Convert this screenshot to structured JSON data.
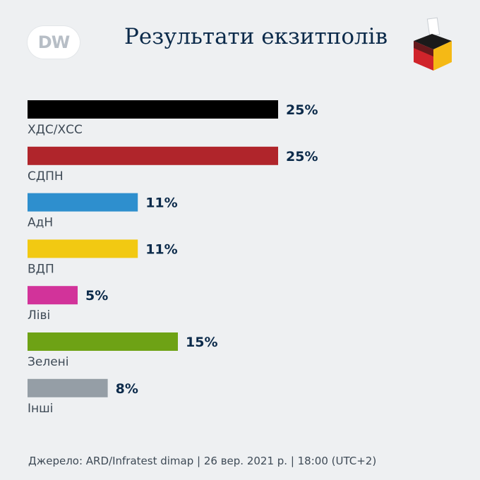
{
  "header": {
    "logo_text": "DW",
    "title": "Результати екзитполів"
  },
  "chart_data": {
    "type": "bar",
    "orientation": "horizontal",
    "title": "Результати екзитполів",
    "categories": [
      "ХДС/ХСС",
      "СДПН",
      "АдН",
      "ВДП",
      "Ліві",
      "Зелені",
      "Інші"
    ],
    "values": [
      25,
      25,
      11,
      11,
      5,
      15,
      8
    ],
    "value_labels": [
      "25%",
      "25%",
      "11%",
      "11%",
      "5%",
      "15%",
      "8%"
    ],
    "colors": [
      "#000000",
      "#b0252b",
      "#2e8fce",
      "#f2c912",
      "#d2339a",
      "#6ea215",
      "#959ea6"
    ],
    "unit": "%",
    "grid": false,
    "legend": "none"
  },
  "footer": {
    "source": "Джерело: ARD/Infratest dimap | 26 вер. 2021 р. | 18:00 (UTC+2)"
  }
}
